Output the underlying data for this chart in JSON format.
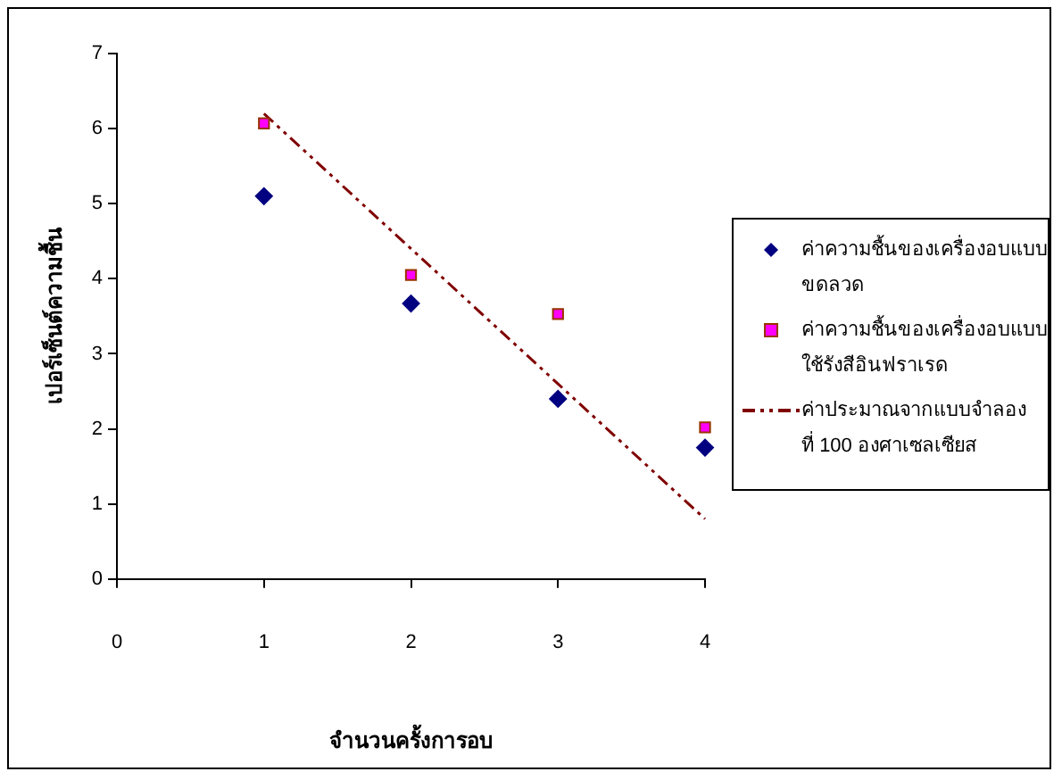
{
  "chart_data": {
    "type": "scatter",
    "xlabel": "จำนวนครั้งการอบ",
    "ylabel": "เปอร์เซ็นต์ความชื้น",
    "xlim": [
      0,
      4
    ],
    "xticks": [
      0,
      1,
      2,
      3,
      4
    ],
    "ylim": [
      0,
      7
    ],
    "yticks": [
      0,
      1,
      2,
      3,
      4,
      5,
      6,
      7
    ],
    "grid": false,
    "legend": "right",
    "series": [
      {
        "name": "ค่าความชื้นของเครื่องอบแบบ ขดลวด",
        "marker": "diamond",
        "color": "#000080",
        "x": [
          1,
          2,
          3,
          4
        ],
        "values": [
          5.1,
          3.67,
          2.4,
          1.75
        ]
      },
      {
        "name": "ค่าความชื้นของเครื่องอบแบบ ใช้รังสีอินฟราเรด",
        "marker": "square",
        "color": "#ff00ff",
        "x": [
          1,
          2,
          3,
          4
        ],
        "values": [
          6.07,
          4.05,
          3.53,
          2.02
        ]
      },
      {
        "name": "ค่าประมาณจากแบบจำลอง ที่ 100 องศาเซลเซียส",
        "type": "line",
        "marker": "none",
        "line_style": "dashed",
        "color": "#800000",
        "x": [
          1,
          2,
          3,
          4
        ],
        "values": [
          6.2,
          4.4,
          2.6,
          0.8
        ]
      }
    ]
  }
}
